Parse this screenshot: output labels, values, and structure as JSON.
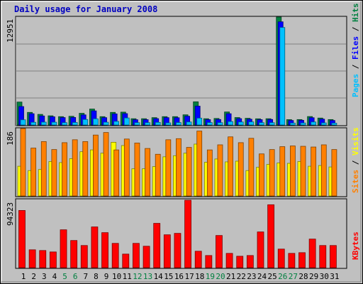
{
  "title": "Daily usage for January 2008",
  "colors": {
    "frame_bg": "#c0c0c0",
    "plot_bg": "#c0c0c0",
    "grid": "#808080",
    "title": "#0000c0",
    "hits": "#008040",
    "files": "#0000ff",
    "pages": "#00c0ff",
    "visits": "#ffff00",
    "sites": "#ff8000",
    "kbytes": "#ff0000",
    "weekend_label": "#008040",
    "weekday_label": "#000000"
  },
  "panels": {
    "hits": {
      "max_label": "12951",
      "legend": [
        {
          "text": "Pages",
          "color": "#00c0ff"
        },
        {
          "text": "/",
          "color": "#000000"
        },
        {
          "text": "Files",
          "color": "#0000ff"
        },
        {
          "text": "/",
          "color": "#000000"
        },
        {
          "text": "Hits",
          "color": "#008040"
        }
      ]
    },
    "visits": {
      "max_label": "186",
      "legend": [
        {
          "text": "Sites",
          "color": "#ff8000"
        },
        {
          "text": "/",
          "color": "#000000"
        },
        {
          "text": "Visits",
          "color": "#ffff00"
        }
      ]
    },
    "kbytes": {
      "max_label": "94323",
      "legend": [
        {
          "text": "KBytes",
          "color": "#ff0000"
        }
      ]
    }
  },
  "chart_data": [
    {
      "type": "bar",
      "title": "Daily usage for January 2008",
      "ylabel": "Pages / Files / Hits",
      "ylim": [
        0,
        12951
      ],
      "grid": true,
      "categories": [
        "1",
        "2",
        "3",
        "4",
        "5",
        "6",
        "7",
        "8",
        "9",
        "10",
        "11",
        "12",
        "13",
        "14",
        "15",
        "16",
        "17",
        "18",
        "19",
        "20",
        "21",
        "22",
        "23",
        "24",
        "25",
        "26",
        "27",
        "28",
        "29",
        "30",
        "31"
      ],
      "series": [
        {
          "name": "Hits",
          "values": [
            2750,
            1510,
            1270,
            1100,
            1000,
            1040,
            1400,
            1910,
            1000,
            1510,
            1540,
            750,
            750,
            880,
            1000,
            1000,
            1220,
            2780,
            750,
            780,
            1560,
            890,
            800,
            740,
            750,
            12951,
            640,
            650,
            1010,
            830,
            650
          ]
        },
        {
          "name": "Files",
          "values": [
            2210,
            1350,
            1080,
            980,
            890,
            900,
            1210,
            1690,
            880,
            1330,
            1360,
            630,
            640,
            760,
            880,
            870,
            1050,
            2260,
            640,
            660,
            1350,
            760,
            690,
            640,
            660,
            12380,
            540,
            560,
            870,
            700,
            540
          ]
        },
        {
          "name": "Pages",
          "values": [
            620,
            320,
            340,
            330,
            280,
            300,
            660,
            740,
            330,
            430,
            840,
            280,
            280,
            310,
            250,
            290,
            360,
            820,
            290,
            280,
            410,
            360,
            370,
            280,
            280,
            11700,
            230,
            240,
            360,
            250,
            220
          ]
        }
      ]
    },
    {
      "type": "bar",
      "ylabel": "Sites / Visits",
      "ylim": [
        0,
        186
      ],
      "grid": false,
      "categories": [
        "1",
        "2",
        "3",
        "4",
        "5",
        "6",
        "7",
        "8",
        "9",
        "10",
        "11",
        "12",
        "13",
        "14",
        "15",
        "16",
        "17",
        "18",
        "19",
        "20",
        "21",
        "22",
        "23",
        "24",
        "25",
        "26",
        "27",
        "28",
        "29",
        "30",
        "31"
      ],
      "series": [
        {
          "name": "Sites",
          "values": [
            186,
            132,
            150,
            128,
            147,
            155,
            150,
            168,
            175,
            127,
            157,
            146,
            131,
            115,
            155,
            158,
            134,
            179,
            127,
            141,
            163,
            147,
            159,
            116,
            128,
            136,
            138,
            137,
            135,
            141,
            128
          ]
        },
        {
          "name": "Visits",
          "values": [
            82,
            70,
            73,
            95,
            92,
            103,
            122,
            127,
            118,
            148,
            139,
            75,
            75,
            81,
            108,
            111,
            118,
            143,
            93,
            102,
            94,
            96,
            70,
            79,
            87,
            91,
            90,
            95,
            82,
            84,
            80
          ]
        }
      ]
    },
    {
      "type": "bar",
      "ylabel": "KBytes",
      "ylim": [
        0,
        94323
      ],
      "grid": false,
      "categories": [
        "1",
        "2",
        "3",
        "4",
        "5",
        "6",
        "7",
        "8",
        "9",
        "10",
        "11",
        "12",
        "13",
        "14",
        "15",
        "16",
        "17",
        "18",
        "19",
        "20",
        "21",
        "22",
        "23",
        "24",
        "25",
        "26",
        "27",
        "28",
        "29",
        "30",
        "31"
      ],
      "series": [
        {
          "name": "KBytes",
          "values": [
            80000,
            25000,
            24000,
            22000,
            53000,
            38000,
            31000,
            57000,
            49000,
            34000,
            19000,
            34000,
            30000,
            62000,
            46000,
            48000,
            94323,
            23000,
            17000,
            45000,
            20000,
            16000,
            17000,
            50000,
            88000,
            26000,
            20000,
            21000,
            40000,
            31000,
            31000
          ]
        }
      ]
    }
  ],
  "weekend_days": [
    "5",
    "6",
    "12",
    "13",
    "19",
    "20",
    "26",
    "27"
  ]
}
